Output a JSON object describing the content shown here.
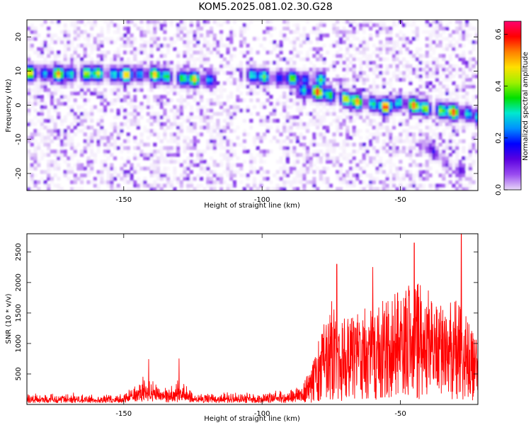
{
  "title": "KOM5.2025.081.02.30.G28",
  "chart_data": [
    {
      "type": "heatmap",
      "title": "KOM5.2025.081.02.30.G28",
      "xlabel": "Height of straight line (km)",
      "ylabel": "Frequency (Hz)",
      "xlim": [
        -185,
        -22
      ],
      "ylim": [
        -25,
        25
      ],
      "xticks": [
        -150,
        -100,
        -50
      ],
      "yticks": [
        -20,
        -10,
        0,
        10,
        20
      ],
      "colorbar": {
        "label": "Normalized spectral amplitude",
        "range": [
          0.0,
          0.65
        ],
        "ticks": [
          0.0,
          0.2,
          0.4,
          0.6
        ],
        "colors": [
          "#ffffff",
          "#e8d8f8",
          "#9a4cf0",
          "#5a00e0",
          "#0000ff",
          "#0090ff",
          "#00e8d0",
          "#00e000",
          "#a0f000",
          "#ffe000",
          "#ff8000",
          "#ff0000",
          "#ff0070"
        ]
      },
      "ridges": [
        {
          "x": [
            -185,
            -170,
            -160,
            -150,
            -140,
            -130,
            -120
          ],
          "y": [
            9.5,
            9.2,
            9.4,
            9.0,
            9.2,
            8.0,
            7.5
          ],
          "peak": 0.55
        },
        {
          "x": [
            -105,
            -100,
            -95,
            -90,
            -85,
            -80
          ],
          "y": [
            9.0,
            8.5,
            8.0,
            8.0,
            7.5,
            7.5
          ],
          "peak": 0.45
        },
        {
          "x": [
            -85,
            -80,
            -75,
            -70,
            -65,
            -60,
            -55,
            -50,
            -45,
            -40,
            -35,
            -30,
            -25,
            -22
          ],
          "y": [
            4.5,
            4.0,
            3.0,
            2.0,
            1.0,
            0.5,
            -0.5,
            1.0,
            0.0,
            -1.0,
            -1.5,
            -2.0,
            -2.5,
            -3.5
          ],
          "peak": 0.62
        },
        {
          "x": [
            -40,
            -30
          ],
          "y": [
            -12,
            -19
          ],
          "peak": 0.2
        }
      ]
    },
    {
      "type": "line",
      "xlabel": "Height of straight line (km)",
      "ylabel": "SNR (10 * v/v)",
      "xlim": [
        -185,
        -22
      ],
      "ylim": [
        0,
        2800
      ],
      "xticks": [
        -150,
        -100,
        -50
      ],
      "yticks": [
        500,
        1000,
        1500,
        2000,
        2500
      ],
      "line_color": "#ff0000",
      "series": [
        {
          "x": [
            -185,
            -175,
            -165,
            -155,
            -150,
            -146,
            -142,
            -138,
            -134,
            -130,
            -125,
            -120,
            -115,
            -110,
            -105,
            -100,
            -95,
            -90,
            -85,
            -82,
            -80,
            -77,
            -75,
            -72,
            -70,
            -65,
            -60,
            -55,
            -50,
            -46,
            -44,
            -40,
            -36,
            -33,
            -30,
            -26,
            -24,
            -22
          ],
          "y": [
            170,
            180,
            175,
            180,
            200,
            380,
            500,
            330,
            280,
            410,
            230,
            210,
            200,
            190,
            200,
            210,
            230,
            260,
            350,
            550,
            900,
            1300,
            1600,
            1200,
            1300,
            1400,
            1500,
            1600,
            1700,
            1800,
            1850,
            1700,
            1600,
            1500,
            1550,
            1300,
            1100,
            900
          ]
        }
      ],
      "peaks": [
        {
          "x": -141,
          "y": 740
        },
        {
          "x": -130,
          "y": 750
        },
        {
          "x": -73,
          "y": 2300
        },
        {
          "x": -60,
          "y": 2250
        },
        {
          "x": -45,
          "y": 2650
        },
        {
          "x": -28,
          "y": 2800
        }
      ]
    }
  ]
}
